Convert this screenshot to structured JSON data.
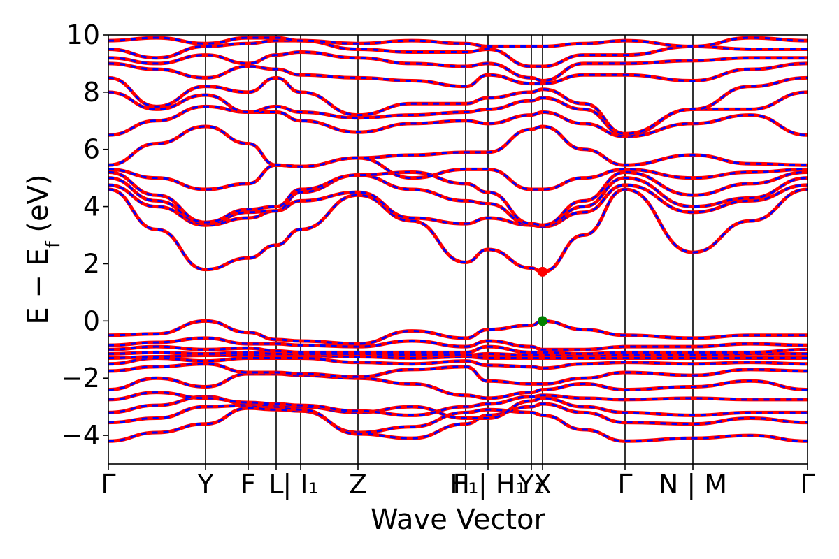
{
  "chart_data": {
    "type": "line",
    "xlabel": "Wave Vector",
    "ylabel": "E − E_f (eV)",
    "ylabel_main": "E − E",
    "ylabel_sub": "f",
    "ylabel_unit": " (eV)",
    "ylim": [
      -5,
      10
    ],
    "yticks": [
      -4,
      -2,
      0,
      2,
      4,
      6,
      8,
      10
    ],
    "ytick_labels": [
      "−4",
      "−2",
      "0",
      "2",
      "4",
      "6",
      "8",
      "10"
    ],
    "x_range": [
      0,
      1
    ],
    "kpoints": [
      {
        "pos": 0.0,
        "label": "Γ"
      },
      {
        "pos": 0.139,
        "label": "Y"
      },
      {
        "pos": 0.2,
        "label": "F"
      },
      {
        "pos": 0.24,
        "label": "L"
      },
      {
        "pos": 0.275,
        "label": "| I₁"
      },
      {
        "pos": 0.357,
        "label": "Z"
      },
      {
        "pos": 0.511,
        "label": "F₁"
      },
      {
        "pos": 0.543,
        "label": "H | H₁"
      },
      {
        "pos": 0.605,
        "label": "Y₁"
      },
      {
        "pos": 0.621,
        "label": "X"
      },
      {
        "pos": 0.739,
        "label": "Γ"
      },
      {
        "pos": 0.836,
        "label": "N | M"
      },
      {
        "pos": 1.0,
        "label": "Γ"
      }
    ],
    "series": [
      {
        "name": "",
        "color": "#ff0000",
        "style": "solid"
      },
      {
        "name": "",
        "color": "#0000ff",
        "style": "dashed"
      }
    ],
    "markers": [
      {
        "x": 0.621,
        "y": 1.72,
        "color": "#ff0000"
      },
      {
        "x": 0.621,
        "y": 0.0,
        "color": "#008000"
      }
    ],
    "bands": {
      "x": [
        0.0,
        0.069,
        0.139,
        0.2,
        0.24,
        0.275,
        0.357,
        0.434,
        0.511,
        0.543,
        0.605,
        0.621,
        0.68,
        0.739,
        0.836,
        0.918,
        1.0
      ],
      "y": [
        [
          -4.2,
          -3.9,
          -3.6,
          -3.05,
          -3.1,
          -3.15,
          -3.9,
          -3.7,
          -3.2,
          -3.1,
          -3.2,
          -3.3,
          -3.8,
          -4.2,
          -4.1,
          -4.0,
          -4.2
        ],
        [
          -3.55,
          -3.4,
          -3.0,
          -2.95,
          -3.0,
          -3.1,
          -3.95,
          -4.1,
          -3.6,
          -3.3,
          -3.0,
          -2.9,
          -3.2,
          -3.55,
          -3.6,
          -3.4,
          -3.55
        ],
        [
          -3.2,
          -2.95,
          -2.65,
          -2.9,
          -2.95,
          -3.0,
          -3.2,
          -3.0,
          -3.4,
          -3.4,
          -2.8,
          -2.7,
          -3.0,
          -3.2,
          -3.3,
          -3.2,
          -3.2
        ],
        [
          -2.75,
          -2.5,
          -2.7,
          -2.85,
          -2.9,
          -2.95,
          -3.15,
          -3.3,
          -3.0,
          -2.9,
          -2.65,
          -2.6,
          -2.7,
          -2.75,
          -2.7,
          -2.75,
          -2.75
        ],
        [
          -2.4,
          -2.0,
          -2.3,
          -1.85,
          -1.85,
          -1.9,
          -2.0,
          -2.2,
          -2.6,
          -2.7,
          -2.5,
          -2.4,
          -2.2,
          -2.4,
          -2.3,
          -2.1,
          -2.4
        ],
        [
          -1.75,
          -1.6,
          -1.5,
          -1.8,
          -1.8,
          -1.85,
          -1.95,
          -1.7,
          -1.6,
          -2.1,
          -2.2,
          -2.2,
          -2.0,
          -1.8,
          -1.9,
          -1.7,
          -1.75
        ],
        [
          -1.5,
          -1.3,
          -1.4,
          -1.3,
          -1.3,
          -1.3,
          -1.45,
          -1.5,
          -1.4,
          -1.55,
          -1.6,
          -1.65,
          -1.5,
          -1.45,
          -1.5,
          -1.45,
          -1.5
        ],
        [
          -1.3,
          -1.25,
          -1.2,
          -1.2,
          -1.2,
          -1.2,
          -1.25,
          -1.3,
          -1.25,
          -1.3,
          -1.3,
          -1.3,
          -1.3,
          -1.3,
          -1.3,
          -1.3,
          -1.3
        ],
        [
          -1.15,
          -1.1,
          -1.15,
          -1.1,
          -1.15,
          -1.15,
          -1.15,
          -1.2,
          -1.2,
          -1.15,
          -1.2,
          -1.2,
          -1.2,
          -1.2,
          -1.2,
          -1.15,
          -1.15
        ],
        [
          -1.0,
          -0.9,
          -1.0,
          -0.95,
          -1.05,
          -1.1,
          -1.1,
          -1.1,
          -1.1,
          -0.9,
          -1.1,
          -1.1,
          -1.15,
          -1.1,
          -1.1,
          -1.1,
          -1.0
        ],
        [
          -0.85,
          -0.75,
          -0.6,
          -0.8,
          -0.8,
          -0.85,
          -0.9,
          -0.7,
          -0.9,
          -0.7,
          -0.9,
          -1.0,
          -1.0,
          -0.9,
          -0.9,
          -0.8,
          -0.85
        ],
        [
          -0.5,
          -0.45,
          0.0,
          -0.4,
          -0.65,
          -0.7,
          -0.8,
          -0.35,
          -0.6,
          -0.3,
          -0.15,
          0.0,
          -0.3,
          -0.5,
          -0.6,
          -0.5,
          -0.5
        ],
        [
          4.6,
          3.2,
          1.8,
          2.2,
          2.65,
          3.2,
          4.4,
          3.5,
          2.05,
          2.5,
          1.85,
          1.72,
          3.0,
          4.6,
          2.4,
          3.5,
          4.6
        ],
        [
          4.75,
          4.0,
          3.35,
          3.6,
          3.85,
          4.2,
          4.5,
          3.6,
          3.4,
          3.6,
          3.35,
          3.3,
          3.8,
          4.75,
          3.8,
          4.2,
          4.75
        ],
        [
          5.0,
          4.2,
          3.4,
          3.8,
          3.85,
          4.5,
          5.1,
          4.6,
          4.2,
          4.1,
          3.35,
          3.3,
          4.0,
          5.0,
          4.0,
          4.3,
          5.0
        ],
        [
          5.2,
          4.4,
          3.45,
          3.9,
          4.0,
          4.6,
          5.1,
          5.2,
          4.8,
          4.5,
          3.4,
          3.35,
          4.2,
          5.2,
          4.4,
          4.8,
          5.2
        ],
        [
          5.3,
          5.0,
          4.6,
          4.8,
          5.45,
          5.4,
          5.7,
          5.0,
          5.3,
          5.3,
          4.6,
          4.6,
          5.0,
          5.3,
          5.0,
          5.2,
          5.3
        ],
        [
          5.45,
          6.2,
          6.8,
          6.2,
          5.45,
          5.4,
          5.7,
          5.8,
          5.9,
          5.9,
          6.7,
          6.8,
          6.0,
          5.45,
          5.8,
          5.5,
          5.45
        ],
        [
          6.5,
          7.0,
          7.5,
          7.3,
          7.3,
          7.0,
          6.6,
          6.9,
          7.0,
          6.9,
          7.2,
          7.3,
          6.9,
          6.45,
          6.9,
          7.2,
          6.5
        ],
        [
          8.0,
          7.4,
          7.9,
          7.3,
          7.5,
          7.3,
          7.1,
          7.2,
          7.3,
          7.4,
          7.7,
          7.8,
          7.4,
          6.5,
          7.4,
          7.4,
          8.0
        ],
        [
          8.5,
          7.5,
          8.2,
          8.0,
          8.5,
          8.0,
          7.2,
          7.6,
          7.6,
          7.8,
          8.0,
          8.1,
          7.6,
          6.55,
          7.4,
          8.2,
          8.5
        ],
        [
          9.0,
          8.8,
          8.5,
          8.9,
          8.8,
          8.6,
          8.5,
          8.4,
          8.2,
          8.6,
          8.3,
          8.3,
          8.6,
          8.6,
          8.4,
          8.8,
          9.0
        ],
        [
          9.2,
          9.0,
          9.3,
          9.0,
          9.3,
          9.4,
          9.2,
          9.0,
          8.9,
          9.0,
          8.5,
          8.4,
          9.0,
          9.0,
          9.1,
          9.2,
          9.2
        ],
        [
          9.5,
          9.2,
          9.6,
          9.7,
          9.8,
          9.8,
          9.5,
          9.4,
          9.4,
          9.5,
          8.9,
          8.9,
          9.3,
          9.3,
          9.6,
          9.5,
          9.5
        ],
        [
          9.8,
          9.9,
          9.7,
          9.9,
          9.9,
          9.8,
          9.7,
          9.8,
          9.7,
          9.6,
          9.6,
          9.6,
          9.7,
          9.8,
          9.6,
          9.9,
          9.8
        ]
      ]
    }
  }
}
